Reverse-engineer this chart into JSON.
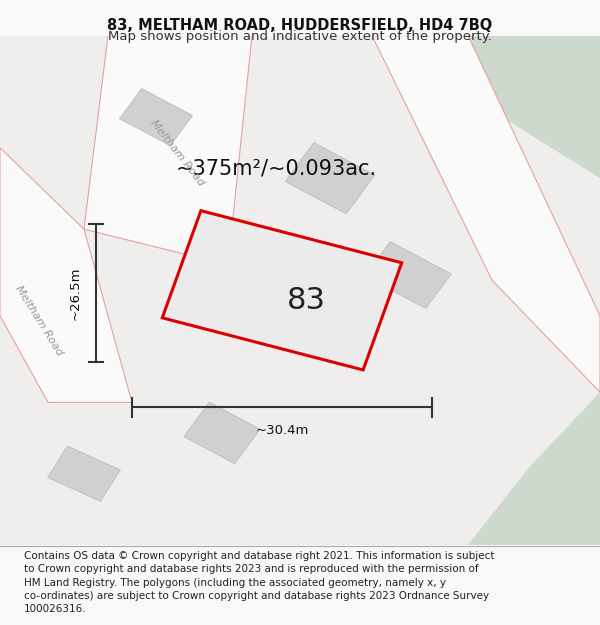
{
  "title_line1": "83, MELTHAM ROAD, HUDDERSFIELD, HD4 7BQ",
  "title_line2": "Map shows position and indicative extent of the property.",
  "footer_text": "Contains OS data © Crown copyright and database right 2021. This information is subject to Crown copyright and database rights 2023 and is reproduced with the permission of HM Land Registry. The polygons (including the associated geometry, namely x, y co-ordinates) are subject to Crown copyright and database rights 2023 Ordnance Survey 100026316.",
  "area_label": "~375m²/~0.093ac.",
  "number_label": "83",
  "dim_height": "~26.5m",
  "dim_width": "~30.4m",
  "road_label_upper": "Meltham Road",
  "road_label_lower": "Meltham Road",
  "bg_color": "#f0eeec",
  "road_fill_color": "#fafafa",
  "building_fill_color": "#d4d4d4",
  "green_area_color": "#ccd9cc",
  "road_line_color": "#e8a0a0",
  "property_outline_color": "#dd0000",
  "property_fill_color": "#ebebeb",
  "dim_line_color": "#333333",
  "title_fontsize": 10.5,
  "subtitle_fontsize": 9.5,
  "footer_fontsize": 7.5,
  "area_label_fontsize": 15,
  "number_fontsize": 22,
  "dim_fontsize": 9.5,
  "road_label_fontsize": 8
}
